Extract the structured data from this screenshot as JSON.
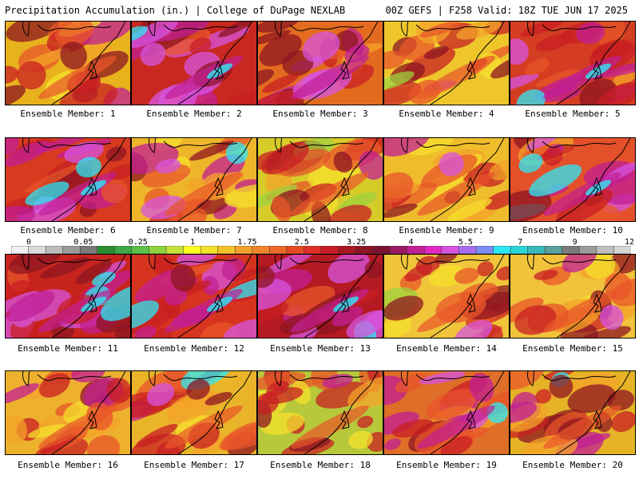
{
  "header": {
    "title_left": "Precipitation Accumulation (in.) | College of DuPage NEXLAB",
    "title_right": "00Z GEFS | F258 Valid: 18Z TUE JUN 17 2025"
  },
  "members": [
    {
      "label": "Ensemble Member: 1",
      "bg": "#e8b21d",
      "intensity": 0.55
    },
    {
      "label": "Ensemble Member: 2",
      "bg": "#c8281f",
      "intensity": 0.85
    },
    {
      "label": "Ensemble Member: 3",
      "bg": "#e36b1f",
      "intensity": 0.65
    },
    {
      "label": "Ensemble Member: 4",
      "bg": "#eec62c",
      "intensity": 0.35
    },
    {
      "label": "Ensemble Member: 5",
      "bg": "#d43d22",
      "intensity": 0.75
    },
    {
      "label": "Ensemble Member: 6",
      "bg": "#d83a20",
      "intensity": 0.8
    },
    {
      "label": "Ensemble Member: 7",
      "bg": "#eeb52a",
      "intensity": 0.5
    },
    {
      "label": "Ensemble Member: 8",
      "bg": "#d7cb2a",
      "intensity": 0.3
    },
    {
      "label": "Ensemble Member: 9",
      "bg": "#efbd2c",
      "intensity": 0.45
    },
    {
      "label": "Ensemble Member: 10",
      "bg": "#e4502a",
      "intensity": 0.75
    },
    {
      "label": "Ensemble Member: 11",
      "bg": "#c8241e",
      "intensity": 0.85
    },
    {
      "label": "Ensemble Member: 12",
      "bg": "#d6341f",
      "intensity": 0.8
    },
    {
      "label": "Ensemble Member: 13",
      "bg": "#b51a23",
      "intensity": 0.9
    },
    {
      "label": "Ensemble Member: 14",
      "bg": "#f0c53a",
      "intensity": 0.35
    },
    {
      "label": "Ensemble Member: 15",
      "bg": "#f1c23a",
      "intensity": 0.45
    },
    {
      "label": "Ensemble Member: 16",
      "bg": "#edb12d",
      "intensity": 0.5
    },
    {
      "label": "Ensemble Member: 17",
      "bg": "#eab42a",
      "intensity": 0.55
    },
    {
      "label": "Ensemble Member: 18",
      "bg": "#b7c93a",
      "intensity": 0.3
    },
    {
      "label": "Ensemble Member: 19",
      "bg": "#df6e28",
      "intensity": 0.7
    },
    {
      "label": "Ensemble Member: 20",
      "bg": "#e5b325",
      "intensity": 0.5
    }
  ],
  "colorbar": {
    "ticks": [
      "0",
      "0.05",
      "0.25",
      "1",
      "1.75",
      "2.5",
      "3.25",
      "4",
      "5.5",
      "7",
      "9",
      "12"
    ],
    "colors": [
      "#f0f0f0",
      "#dcdcdc",
      "#bcbcbc",
      "#9a9a9a",
      "#7a7a7a",
      "#2b8d2e",
      "#3fa844",
      "#5ec24a",
      "#8fd341",
      "#c7e23a",
      "#ffff22",
      "#f5e12a",
      "#f5c22a",
      "#f4a22a",
      "#f0852a",
      "#ee6828",
      "#e84a26",
      "#df2e25",
      "#c61d22",
      "#a91720",
      "#8e1522",
      "#7a1430",
      "#9b1b63",
      "#c21f94",
      "#e22ac3",
      "#d754e0",
      "#a86ef0",
      "#7c8cf0",
      "#2ce8f6",
      "#2dd6d6",
      "#3ab7b7",
      "#5aa0a0",
      "#7a7a7a",
      "#9b9b9b",
      "#bfbfbf",
      "#d6d6d6"
    ]
  }
}
